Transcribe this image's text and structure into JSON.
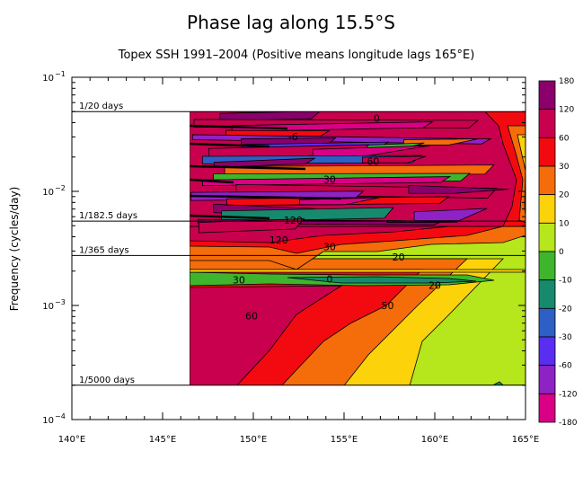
{
  "chart_data": {
    "type": "heatmap",
    "title": "Phase lag along 15.5°S",
    "subtitle": "Topex SSH 1991–2004 (Positive means longitude lags 165°E)",
    "xlabel": "",
    "ylabel": "Frequency (cycles/day)",
    "x_ticks": [
      "140°E",
      "145°E",
      "150°E",
      "155°E",
      "160°E",
      "165°E"
    ],
    "x_tick_values": [
      140,
      145,
      150,
      155,
      160,
      165
    ],
    "xlim": [
      140,
      165
    ],
    "y_scale": "log",
    "ylim": [
      0.0001,
      0.1
    ],
    "y_ticks": [
      {
        "value": 0.1,
        "base": "10",
        "exp": "−1"
      },
      {
        "value": 0.01,
        "base": "10",
        "exp": "−2"
      },
      {
        "value": 0.001,
        "base": "10",
        "exp": "−3"
      },
      {
        "value": 0.0001,
        "base": "10",
        "exp": "−4"
      }
    ],
    "reference_lines": [
      {
        "label": "1/20 days",
        "freq": 0.05
      },
      {
        "label": "1/182.5 days",
        "freq": 0.00548
      },
      {
        "label": "1/365 days",
        "freq": 0.00274
      },
      {
        "label": "1/5000 days",
        "freq": 0.0002
      }
    ],
    "data_extent": {
      "lon_min": 146.5,
      "lon_max": 165,
      "freq_min": 0.0002,
      "freq_max": 0.05
    },
    "colorbar": {
      "labels": [
        "180",
        "120",
        "60",
        "30",
        "20",
        "10",
        "0",
        "-10",
        "-20",
        "-30",
        "-60",
        "-120",
        "-180"
      ],
      "bands": [
        {
          "range": [
            120,
            180
          ],
          "color": "#8b006b"
        },
        {
          "range": [
            60,
            120
          ],
          "color": "#c8004e"
        },
        {
          "range": [
            30,
            60
          ],
          "color": "#f20a10"
        },
        {
          "range": [
            20,
            30
          ],
          "color": "#f56c0a"
        },
        {
          "range": [
            10,
            20
          ],
          "color": "#fcd20a"
        },
        {
          "range": [
            0,
            10
          ],
          "color": "#b6e61c"
        },
        {
          "range": [
            -10,
            0
          ],
          "color": "#3fb52e"
        },
        {
          "range": [
            -20,
            -10
          ],
          "color": "#178a6d"
        },
        {
          "range": [
            -30,
            -20
          ],
          "color": "#2e5fc4"
        },
        {
          "range": [
            -60,
            -30
          ],
          "color": "#5a2ef0"
        },
        {
          "range": [
            -120,
            -60
          ],
          "color": "#8e22c4"
        },
        {
          "range": [
            -180,
            -120
          ],
          "color": "#d90085"
        }
      ]
    },
    "contour_labels": [
      {
        "text": "60",
        "lon": 149.9,
        "freq": 0.0008
      },
      {
        "text": "50",
        "lon": 157.4,
        "freq": 0.00098
      },
      {
        "text": "20",
        "lon": 160,
        "freq": 0.00148
      },
      {
        "text": "30",
        "lon": 149.2,
        "freq": 0.00165
      },
      {
        "text": "0",
        "lon": 154.2,
        "freq": 0.00168
      },
      {
        "text": "30",
        "lon": 154.2,
        "freq": 0.00322
      },
      {
        "text": "20",
        "lon": 158,
        "freq": 0.00262
      },
      {
        "text": "120",
        "lon": 151.4,
        "freq": 0.0037
      },
      {
        "text": "120",
        "lon": 152.2,
        "freq": 0.0055
      },
      {
        "text": "30",
        "lon": 154.2,
        "freq": 0.0125
      },
      {
        "text": "60",
        "lon": 156.6,
        "freq": 0.018
      },
      {
        "text": "-6",
        "lon": 152.2,
        "freq": 0.0296
      },
      {
        "text": "0",
        "lon": 156.8,
        "freq": 0.043
      }
    ]
  }
}
